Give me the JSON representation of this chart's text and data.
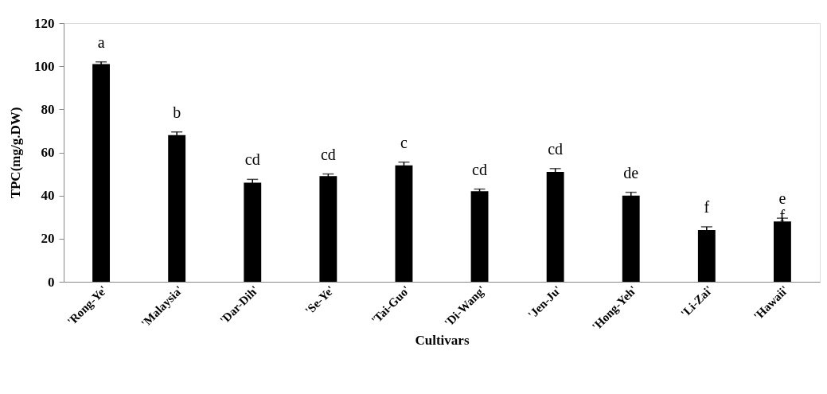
{
  "chart_data": {
    "type": "bar",
    "xlabel": "Cultivars",
    "ylabel": "TPC(mg/g.DW)",
    "categories": [
      "'Rong-Ye'",
      "'Malaysia'",
      "'Dar-Dih'",
      "'Se-Ye'",
      "'Tai-Guo'",
      "'Di-Wang'",
      "'Jen-Ju'",
      "'Hong-Yeh'",
      "'Li-Zai'",
      "'Hawaii'"
    ],
    "values": [
      101,
      68,
      46,
      49,
      54,
      42,
      51,
      40,
      24,
      28
    ],
    "errors": [
      1,
      1.5,
      1.5,
      1,
      1.5,
      1,
      1.5,
      1.5,
      1.5,
      1.5
    ],
    "color": "#000000",
    "ylim": [
      0,
      120
    ],
    "yticks": [
      0,
      20,
      40,
      60,
      80,
      100,
      120
    ],
    "grid": false,
    "value_labels": [
      "a",
      "b",
      "cd",
      "cd",
      "c",
      "cd",
      "cd",
      "de",
      "f",
      "e\nf"
    ]
  }
}
